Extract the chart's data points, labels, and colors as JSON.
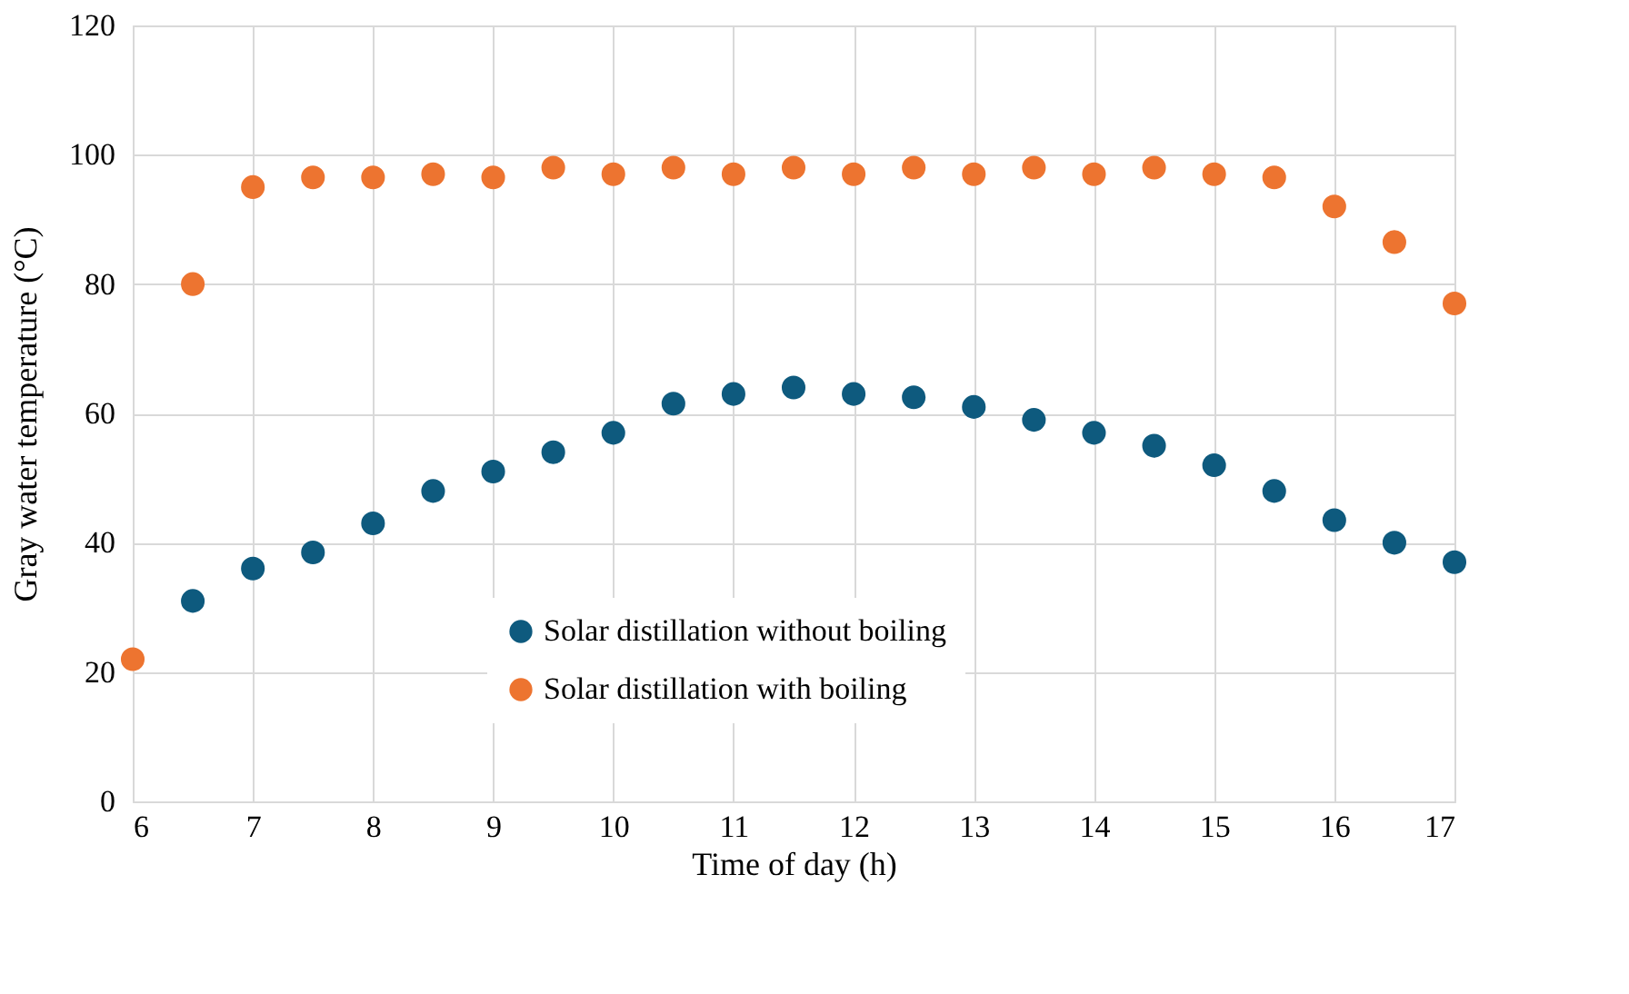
{
  "chart_data": {
    "type": "scatter",
    "xlabel": "Time of day (h)",
    "ylabel": "Gray water temperature (°C)",
    "x": [
      6,
      6.5,
      7,
      7.5,
      8,
      8.5,
      9,
      9.5,
      10,
      10.5,
      11,
      11.5,
      12,
      12.5,
      13,
      13.5,
      14,
      14.5,
      15,
      15.5,
      16,
      16.5,
      17
    ],
    "series": [
      {
        "name": "Solar distillation without boiling",
        "color": "#0e5a7e",
        "values": [
          null,
          31,
          36,
          38.5,
          43,
          48,
          51,
          54,
          57,
          61.5,
          63,
          64,
          63,
          62.5,
          61,
          59,
          57,
          55,
          52,
          48,
          43.5,
          40,
          37
        ]
      },
      {
        "name": "Solar distillation with boiling",
        "color": "#ed7430",
        "values": [
          22,
          80,
          95,
          96.5,
          96.5,
          97,
          96.5,
          98,
          97,
          98,
          97,
          98,
          97,
          98,
          97,
          98,
          97,
          98,
          97,
          96.5,
          92,
          86.5,
          77
        ]
      }
    ],
    "xlim": [
      6,
      17
    ],
    "xticks": [
      6,
      7,
      8,
      9,
      10,
      11,
      12,
      13,
      14,
      15,
      16,
      17
    ],
    "ylim": [
      0,
      120
    ],
    "yticks": [
      0,
      20,
      40,
      60,
      80,
      100,
      120
    ],
    "grid": true,
    "legend": "bottom",
    "marker": "circle"
  }
}
